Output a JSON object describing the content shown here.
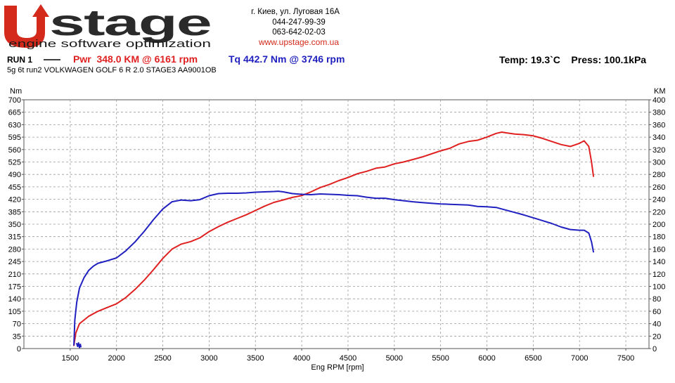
{
  "header": {
    "logo_text": "Upstage",
    "tagline": "engine software optimization",
    "address": "г. Киев, ул. Луговая 16А",
    "phone1": "044-247-99-39",
    "phone2": "063-642-02-03",
    "website": "www.upstage.com.ua"
  },
  "run": {
    "label": "RUN 1",
    "power_summary": "Pwr  348.0 KM @ 6161 rpm",
    "torque_summary": "Tq 442.7 Nm @ 3746 rpm",
    "conditions": "Temp: 19.3`C    Press: 100.1kPa",
    "description": "5g 6t run2 VOLKWAGEN GOLF 6 R 2.0 STAGE3 AA9001OB"
  },
  "colors": {
    "power": "#e02020",
    "torque": "#2020c0",
    "logo_red": "#d42a1c",
    "website": "#d42a1c",
    "grid": "#9a9a9a"
  },
  "chart_data": {
    "type": "line",
    "xlabel": "Eng RPM [rpm]",
    "ylabel_left": "Nm",
    "ylabel_right": "KM",
    "xlim": [
      1000,
      7750
    ],
    "ylim_left": [
      0,
      700
    ],
    "ylim_right": [
      0,
      400
    ],
    "x_ticks": [
      1500,
      2000,
      2500,
      3000,
      3500,
      4000,
      4500,
      5000,
      5500,
      6000,
      6500,
      7000,
      7500
    ],
    "y_left_ticks": [
      0,
      35,
      70,
      105,
      140,
      175,
      210,
      245,
      280,
      315,
      350,
      385,
      420,
      455,
      490,
      525,
      560,
      595,
      630,
      665,
      700
    ],
    "y_right_ticks": [
      0,
      20,
      40,
      60,
      80,
      100,
      120,
      140,
      160,
      180,
      200,
      220,
      240,
      260,
      280,
      300,
      320,
      340,
      360,
      380,
      400
    ],
    "grid": true,
    "series": [
      {
        "axis": "right",
        "color": "#e02020",
        "x": [
          1540,
          1560,
          1600,
          1700,
          1800,
          1900,
          2000,
          2100,
          2200,
          2300,
          2400,
          2500,
          2600,
          2700,
          2800,
          2900,
          3000,
          3100,
          3200,
          3300,
          3400,
          3500,
          3600,
          3700,
          3800,
          3900,
          4000,
          4100,
          4200,
          4300,
          4400,
          4500,
          4600,
          4700,
          4800,
          4900,
          5000,
          5100,
          5200,
          5300,
          5400,
          5500,
          5600,
          5700,
          5800,
          5900,
          6000,
          6100,
          6161,
          6200,
          6300,
          6400,
          6500,
          6600,
          6700,
          6800,
          6900,
          7000,
          7050,
          7100,
          7130,
          7150
        ],
        "y": [
          5,
          25,
          40,
          52,
          60,
          66,
          72,
          82,
          95,
          110,
          127,
          145,
          160,
          168,
          172,
          178,
          188,
          196,
          203,
          209,
          215,
          222,
          229,
          235,
          239,
          243,
          246,
          252,
          259,
          264,
          270,
          275,
          281,
          285,
          290,
          292,
          297,
          300,
          304,
          308,
          313,
          318,
          322,
          329,
          333,
          335,
          340,
          346,
          348,
          347,
          345,
          344,
          342,
          338,
          333,
          328,
          325,
          330,
          334,
          325,
          300,
          277
        ]
      },
      {
        "axis": "left",
        "color": "#2020c0",
        "x": [
          1540,
          1550,
          1570,
          1600,
          1650,
          1700,
          1750,
          1800,
          1900,
          2000,
          2100,
          2200,
          2300,
          2400,
          2500,
          2600,
          2700,
          2800,
          2900,
          3000,
          3100,
          3200,
          3300,
          3400,
          3500,
          3600,
          3700,
          3746,
          3800,
          3900,
          4000,
          4100,
          4200,
          4300,
          4400,
          4500,
          4600,
          4700,
          4800,
          4900,
          5000,
          5100,
          5200,
          5300,
          5400,
          5500,
          5600,
          5700,
          5800,
          5900,
          6000,
          6100,
          6200,
          6300,
          6400,
          6500,
          6600,
          6700,
          6800,
          6900,
          7000,
          7050,
          7100,
          7130,
          7150
        ],
        "y": [
          10,
          80,
          130,
          170,
          200,
          220,
          232,
          240,
          247,
          255,
          275,
          300,
          330,
          363,
          393,
          413,
          418,
          416,
          419,
          430,
          436,
          437,
          437,
          438,
          440,
          441,
          442,
          442.7,
          441,
          436,
          434,
          433,
          435,
          434,
          433,
          431,
          430,
          426,
          423,
          423,
          419,
          416,
          413,
          411,
          409,
          407,
          406,
          405,
          404,
          400,
          399,
          397,
          390,
          383,
          376,
          368,
          360,
          352,
          342,
          335,
          333,
          333,
          325,
          300,
          272
        ]
      },
      {
        "axis": "left",
        "color": "#2020c0",
        "x": [
          1570,
          1580,
          1590,
          1600,
          1610,
          1615
        ],
        "y": [
          14,
          6,
          16,
          3,
          12,
          5
        ]
      }
    ]
  }
}
